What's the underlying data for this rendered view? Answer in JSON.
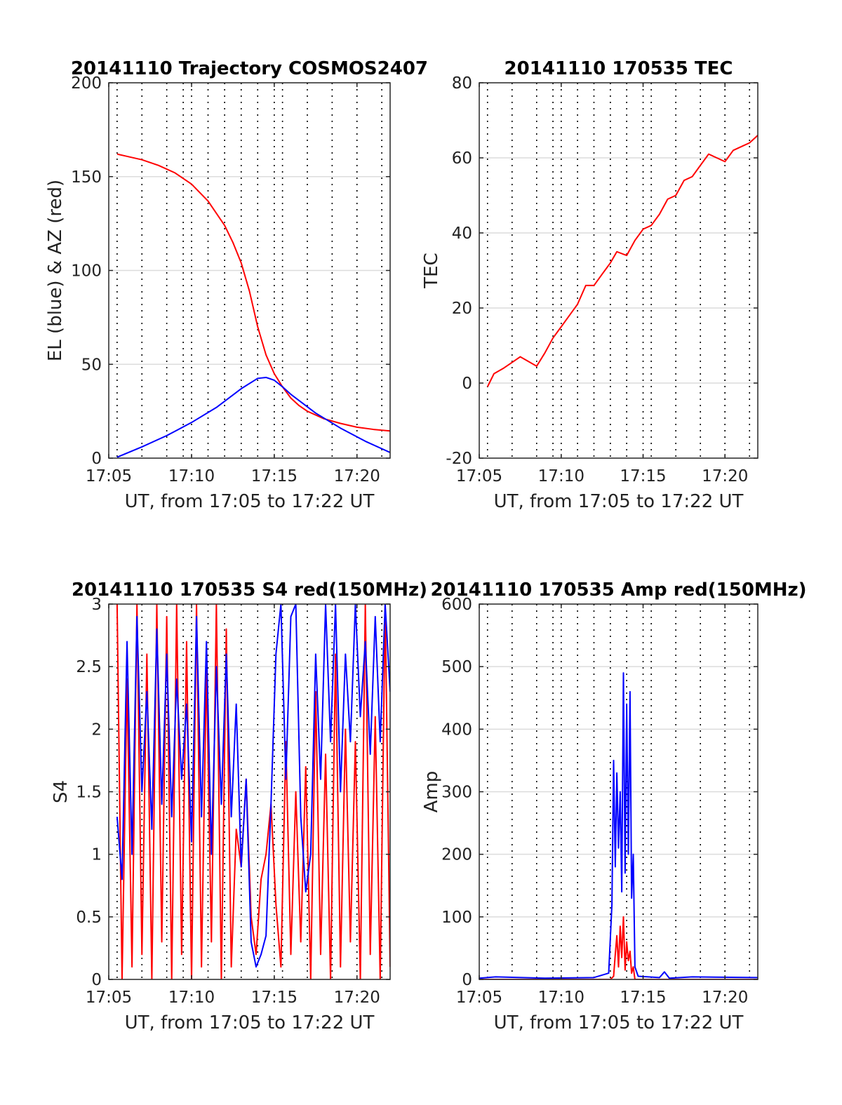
{
  "chart_data": [
    {
      "type": "line",
      "title": "20141110 Trajectory COSMOS2407",
      "xlabel": "UT, from 17:05 to 17:22 UT",
      "ylabel": "EL (blue) & AZ (red)",
      "xlim": [
        17.0833,
        17.3667
      ],
      "ylim": [
        0,
        200
      ],
      "yticks": [
        0,
        50,
        100,
        150,
        200
      ],
      "xticks": [
        17.0833,
        17.1667,
        17.25,
        17.3333
      ],
      "xtick_labels": [
        "17:05",
        "17:10",
        "17:15",
        "17:20"
      ],
      "grid": true,
      "series": [
        {
          "color": "#ff0000",
          "x": [
            17.0917,
            17.1,
            17.1167,
            17.1333,
            17.15,
            17.1667,
            17.1833,
            17.2,
            17.2083,
            17.2167,
            17.225,
            17.2333,
            17.2417,
            17.25,
            17.2583,
            17.2667,
            17.275,
            17.2833,
            17.3,
            17.3167,
            17.3333,
            17.35,
            17.3667
          ],
          "values": [
            162,
            161,
            159,
            156,
            152,
            146,
            137,
            124,
            115,
            104,
            89,
            70,
            55,
            45,
            38,
            32,
            28,
            25,
            21,
            18.5,
            16.5,
            15.3,
            14.5
          ]
        },
        {
          "color": "#0000ff",
          "x": [
            17.0917,
            17.1167,
            17.1417,
            17.1667,
            17.1917,
            17.2167,
            17.2333,
            17.2417,
            17.25,
            17.2583,
            17.2667,
            17.2917,
            17.3167,
            17.3417,
            17.3667
          ],
          "values": [
            0.5,
            6,
            12,
            19,
            27,
            37,
            42.5,
            43,
            41.5,
            38,
            34,
            24,
            16,
            9,
            3
          ]
        }
      ]
    },
    {
      "type": "line",
      "title": "20141110 170535 TEC",
      "xlabel": "UT, from 17:05 to 17:22 UT",
      "ylabel": "TEC",
      "xlim": [
        17.0833,
        17.3667
      ],
      "ylim": [
        -20,
        80
      ],
      "yticks": [
        -20,
        0,
        20,
        40,
        60,
        80
      ],
      "xticks": [
        17.0833,
        17.1667,
        17.25,
        17.3333
      ],
      "xtick_labels": [
        "17:05",
        "17:10",
        "17:15",
        "17:20"
      ],
      "grid": true,
      "series": [
        {
          "color": "#ff0000",
          "x": [
            17.0917,
            17.0983,
            17.1083,
            17.1167,
            17.125,
            17.1317,
            17.1417,
            17.15,
            17.1583,
            17.1667,
            17.175,
            17.1833,
            17.1917,
            17.2,
            17.2083,
            17.2167,
            17.2233,
            17.2333,
            17.2417,
            17.25,
            17.2583,
            17.2667,
            17.275,
            17.2833,
            17.2917,
            17.3,
            17.3083,
            17.3167,
            17.325,
            17.3333,
            17.3417,
            17.35,
            17.3583,
            17.3667
          ],
          "values": [
            -1,
            2.5,
            4,
            5.5,
            7,
            6,
            4.5,
            8,
            12,
            15,
            18,
            21,
            26,
            26,
            29,
            32,
            35,
            34,
            38,
            41,
            42,
            45,
            49,
            50,
            54,
            55,
            58,
            61,
            60,
            59,
            62,
            63,
            64,
            66
          ]
        }
      ]
    },
    {
      "type": "line",
      "title": "20141110 170535 S4 red(150MHz)",
      "xlabel": "UT, from 17:05 to 17:22 UT",
      "ylabel": "S4",
      "xlim": [
        17.0833,
        17.3667
      ],
      "ylim": [
        0,
        3
      ],
      "yticks": [
        0,
        0.5,
        1,
        1.5,
        2,
        2.5,
        3
      ],
      "xticks": [
        17.0833,
        17.1667,
        17.25,
        17.3333
      ],
      "xtick_labels": [
        "17:05",
        "17:10",
        "17:15",
        "17:20"
      ],
      "grid": true,
      "series": [
        {
          "color": "#ff0000",
          "x": [
            17.0917,
            17.0967,
            17.1017,
            17.1067,
            17.1117,
            17.1167,
            17.1217,
            17.1267,
            17.1317,
            17.1367,
            17.1417,
            17.1467,
            17.1517,
            17.1567,
            17.1617,
            17.1667,
            17.1717,
            17.1767,
            17.1817,
            17.1867,
            17.1917,
            17.1967,
            17.2017,
            17.2067,
            17.2117,
            17.2167,
            17.2217,
            17.2267,
            17.2317,
            17.2367,
            17.2417,
            17.2467,
            17.2517,
            17.2567,
            17.2617,
            17.2667,
            17.2717,
            17.2767,
            17.2817,
            17.2867,
            17.2917,
            17.2967,
            17.3017,
            17.3067,
            17.3117,
            17.3167,
            17.3217,
            17.3267,
            17.3317,
            17.3367,
            17.3417,
            17.3467,
            17.3517,
            17.3567,
            17.3617,
            17.3667
          ],
          "values": [
            3,
            0,
            2.4,
            0.1,
            3,
            0.2,
            2.6,
            0,
            3,
            0.3,
            2.9,
            0,
            3,
            0.2,
            2.7,
            0,
            3,
            0.1,
            2.5,
            0.3,
            3,
            0,
            2.8,
            0.1,
            1.2,
            0.9,
            1.6,
            0.5,
            0.2,
            0.8,
            1.0,
            1.4,
            0.6,
            0.1,
            1.9,
            0.2,
            1.5,
            0.3,
            1.7,
            0,
            2.3,
            0.2,
            1.8,
            0,
            2.6,
            0.1,
            2.0,
            0.3,
            1.9,
            0,
            3,
            0.2,
            2.1,
            0,
            3,
            0.1
          ]
        },
        {
          "color": "#0000ff",
          "x": [
            17.0917,
            17.0967,
            17.1017,
            17.1067,
            17.1117,
            17.1167,
            17.1217,
            17.1267,
            17.1317,
            17.1367,
            17.1417,
            17.1467,
            17.1517,
            17.1567,
            17.1617,
            17.1667,
            17.1717,
            17.1767,
            17.1817,
            17.1867,
            17.1917,
            17.1967,
            17.2017,
            17.2067,
            17.2117,
            17.2167,
            17.2217,
            17.2267,
            17.2317,
            17.2367,
            17.2417,
            17.2467,
            17.2517,
            17.2567,
            17.2617,
            17.2667,
            17.2717,
            17.2767,
            17.2817,
            17.2867,
            17.2917,
            17.2967,
            17.3017,
            17.3067,
            17.3117,
            17.3167,
            17.3217,
            17.3267,
            17.3317,
            17.3367,
            17.3417,
            17.3467,
            17.3517,
            17.3567,
            17.3617,
            17.3667
          ],
          "values": [
            1.3,
            0.8,
            2.7,
            1.0,
            2.9,
            1.5,
            2.3,
            1.2,
            2.8,
            1.4,
            2.6,
            1.3,
            2.4,
            1.6,
            2.2,
            1.1,
            2.9,
            1.3,
            2.7,
            1.0,
            2.5,
            1.4,
            2.6,
            1.3,
            2.2,
            0.9,
            1.6,
            0.3,
            0.1,
            0.2,
            0.35,
            1.4,
            2.6,
            3,
            1.6,
            2.9,
            3,
            1.3,
            0.7,
            1.0,
            2.6,
            1.6,
            3,
            1.9,
            3,
            1.5,
            2.6,
            1.9,
            3,
            2.1,
            2.7,
            1.8,
            2.9,
            1.9,
            3,
            2.3
          ]
        }
      ]
    },
    {
      "type": "line",
      "title": "20141110 170535 Amp red(150MHz)",
      "xlabel": "UT, from 17:05 to 17:22 UT",
      "ylabel": "Amp",
      "xlim": [
        17.0833,
        17.3667
      ],
      "ylim": [
        0,
        600
      ],
      "yticks": [
        0,
        100,
        200,
        300,
        400,
        500,
        600
      ],
      "xticks": [
        17.0833,
        17.1667,
        17.25,
        17.3333
      ],
      "xtick_labels": [
        "17:05",
        "17:10",
        "17:15",
        "17:20"
      ],
      "grid": true,
      "series": [
        {
          "color": "#ff0000",
          "x": [
            17.0833,
            17.2167,
            17.22,
            17.2217,
            17.2233,
            17.225,
            17.2267,
            17.2283,
            17.23,
            17.2317,
            17.2333,
            17.235,
            17.2367,
            17.2383,
            17.24,
            17.2417,
            17.3667
          ],
          "values": [
            0,
            0,
            5,
            40,
            70,
            20,
            85,
            35,
            100,
            15,
            60,
            30,
            45,
            10,
            20,
            0,
            0
          ]
        },
        {
          "color": "#0000ff",
          "x": [
            17.0833,
            17.1,
            17.15,
            17.2,
            17.215,
            17.2183,
            17.22,
            17.2217,
            17.2233,
            17.225,
            17.2267,
            17.2283,
            17.23,
            17.2317,
            17.2333,
            17.235,
            17.2367,
            17.2383,
            17.24,
            17.2417,
            17.245,
            17.2667,
            17.2717,
            17.2767,
            17.3,
            17.3667
          ],
          "values": [
            2,
            4,
            2,
            3,
            10,
            120,
            350,
            180,
            330,
            210,
            300,
            140,
            490,
            170,
            440,
            200,
            460,
            130,
            200,
            20,
            5,
            3,
            12,
            2,
            4,
            3
          ]
        }
      ]
    }
  ]
}
